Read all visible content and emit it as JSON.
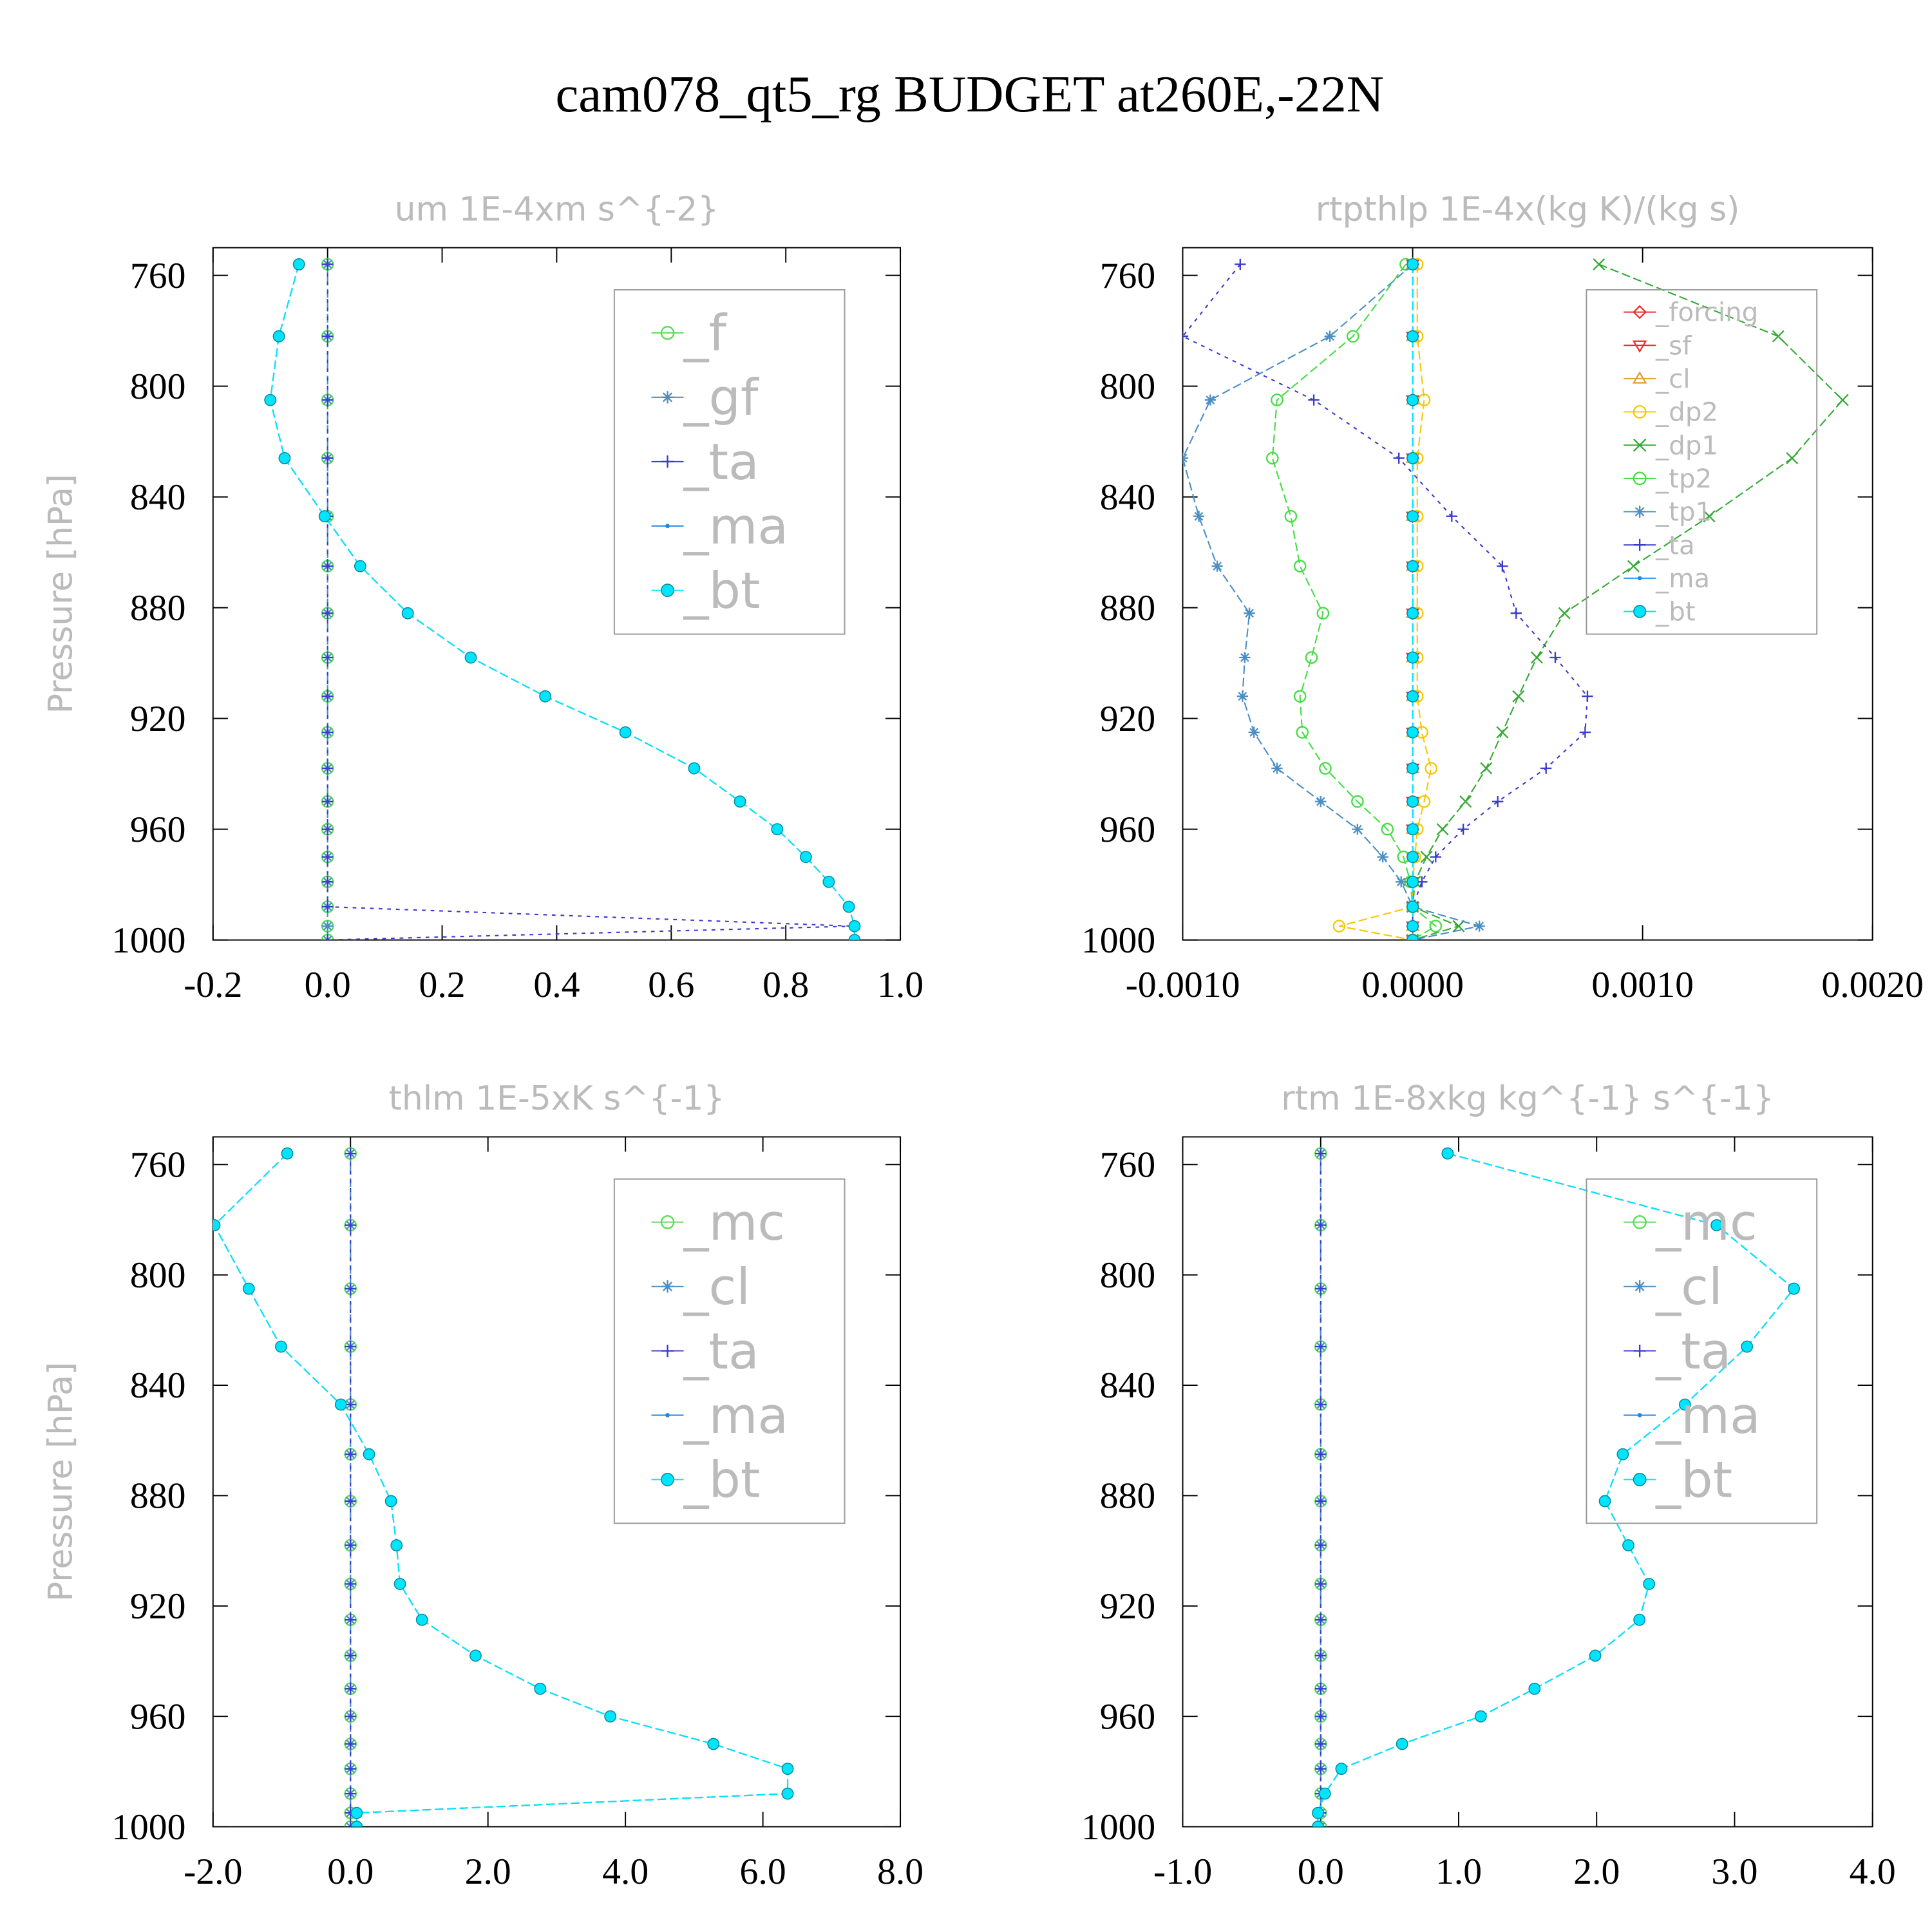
{
  "title": "cam078_qt5_rg  BUDGET at260E,-22N",
  "chart_data": [
    {
      "type": "line",
      "title": "um   1E-4xm s^{-2}",
      "ylabel": "Pressure [hPa]",
      "y": [
        756,
        782,
        805,
        826,
        847,
        865,
        882,
        898,
        912,
        925,
        938,
        950,
        960,
        970,
        979,
        988,
        995,
        1000
      ],
      "ylim": [
        750,
        1000
      ],
      "y_inverted": true,
      "yticks": [
        760,
        800,
        840,
        880,
        920,
        960,
        1000
      ],
      "xlim": [
        -0.2,
        1.0
      ],
      "xticks": [
        -0.2,
        {
          "value": 0,
          "label": "0.0"
        },
        0.2,
        0.4,
        0.6,
        0.8,
        {
          "value": 1,
          "label": "1.0"
        }
      ],
      "legend": "upper right",
      "series": [
        {
          "name": "_f",
          "color": "#55dd55",
          "marker": "circle",
          "values": [
            0,
            0,
            0,
            0,
            0,
            0,
            0,
            0,
            0,
            0,
            0,
            0,
            0,
            0,
            0,
            0,
            0,
            0
          ]
        },
        {
          "name": "_gf",
          "color": "#4a8fc4",
          "marker": "asterisk",
          "values": [
            0,
            0,
            0,
            0,
            0,
            0,
            0,
            0,
            0,
            0,
            0,
            0,
            0,
            0,
            0,
            0,
            0,
            0
          ]
        },
        {
          "name": "_ta",
          "color": "#3a3acc",
          "marker": "plus",
          "values": [
            0,
            0,
            0,
            0,
            0,
            0,
            0,
            0,
            0,
            0,
            0,
            0,
            0,
            0,
            0,
            0,
            0.92,
            0
          ]
        },
        {
          "name": "_ma",
          "color": "#1e88e5",
          "marker": "dot",
          "values": [
            -0.05,
            -0.085,
            -0.1,
            -0.075,
            -0.005,
            0.057,
            0.14,
            0.25,
            0.38,
            0.52,
            0.64,
            0.72,
            0.785,
            0.835,
            0.875,
            0.91,
            0.92,
            0.92
          ]
        },
        {
          "name": "_bt",
          "color": "#00e5ff",
          "marker": "filled",
          "values": [
            -0.05,
            -0.085,
            -0.1,
            -0.075,
            -0.005,
            0.057,
            0.14,
            0.25,
            0.38,
            0.52,
            0.64,
            0.72,
            0.785,
            0.835,
            0.875,
            0.91,
            0.92,
            0.92
          ]
        }
      ]
    },
    {
      "type": "line",
      "title": "rtpthlp   1E-4x(kg K)/(kg s)",
      "ylabel": "Pressure [hPa]",
      "y": [
        756,
        782,
        805,
        826,
        847,
        865,
        882,
        898,
        912,
        925,
        938,
        950,
        960,
        970,
        979,
        988,
        995,
        1000
      ],
      "ylim": [
        750,
        1000
      ],
      "y_inverted": true,
      "yticks": [
        760,
        800,
        840,
        880,
        920,
        960,
        1000
      ],
      "xlim": [
        -0.001,
        0.002
      ],
      "xticks": [
        {
          "value": -0.001,
          "label": "-0.0010"
        },
        {
          "value": 0,
          "label": "0.0000"
        },
        {
          "value": 0.001,
          "label": "0.0010"
        },
        {
          "value": 0.002,
          "label": "0.0020"
        }
      ],
      "legend": "upper right",
      "series": [
        {
          "name": "_forcing",
          "color": "#e83030",
          "marker": "diamond",
          "values": [
            0,
            0,
            0,
            0,
            0,
            0,
            0,
            0,
            0,
            0,
            0,
            0,
            0,
            0,
            0,
            0,
            0,
            0
          ]
        },
        {
          "name": "_sf",
          "color": "#e83030",
          "marker": "tridown",
          "values": [
            0,
            0,
            0,
            0,
            0,
            0,
            0,
            0,
            0,
            0,
            0,
            0,
            0,
            0,
            0,
            0,
            0,
            0
          ]
        },
        {
          "name": "_cl",
          "color": "#e0a030",
          "marker": "triup",
          "values": [
            0,
            0,
            0,
            0,
            0,
            0,
            0,
            0,
            0,
            0,
            0,
            0,
            0,
            0,
            0,
            0,
            0,
            0
          ]
        },
        {
          "name": "_dp2",
          "color": "#f5c800",
          "marker": "circle",
          "values": [
            2e-05,
            2e-05,
            5e-05,
            2e-05,
            2e-05,
            2e-05,
            2e-05,
            2e-05,
            2e-05,
            4e-05,
            8e-05,
            5e-05,
            2e-05,
            1e-05,
            0,
            0,
            -0.00032,
            0
          ]
        },
        {
          "name": "_dp1",
          "color": "#33aa33",
          "marker": "x",
          "values": [
            0.00081,
            0.00159,
            0.00187,
            0.00165,
            0.00129,
            0.00096,
            0.00066,
            0.00054,
            0.00046,
            0.00039,
            0.00032,
            0.00023,
            0.00013,
            6e-05,
            1e-05,
            0,
            0.0002,
            0
          ]
        },
        {
          "name": "_tp2",
          "color": "#44dd44",
          "marker": "circle",
          "values": [
            -3e-05,
            -0.00026,
            -0.00059,
            -0.00061,
            -0.00053,
            -0.00049,
            -0.00039,
            -0.00044,
            -0.00049,
            -0.00048,
            -0.00038,
            -0.00024,
            -0.00011,
            -4e-05,
            -1e-05,
            0,
            0.0001,
            0
          ]
        },
        {
          "name": "_tp1",
          "color": "#4a8fc4",
          "marker": "asterisk",
          "values": [
            0,
            -0.00036,
            -0.00088,
            -0.001,
            -0.00093,
            -0.00085,
            -0.00071,
            -0.00073,
            -0.00074,
            -0.00069,
            -0.00059,
            -0.0004,
            -0.00024,
            -0.00013,
            -5e-05,
            0,
            0.00029,
            0
          ]
        },
        {
          "name": "_ta",
          "color": "#3a3acc",
          "marker": "plus",
          "values": [
            -0.00075,
            -0.001,
            -0.00043,
            -6e-05,
            0.00017,
            0.00039,
            0.00045,
            0.00062,
            0.00076,
            0.00075,
            0.00058,
            0.00037,
            0.00022,
            0.0001,
            4e-05,
            0,
            0,
            0
          ]
        },
        {
          "name": "_ma",
          "color": "#1e88e5",
          "marker": "dot",
          "values": [
            0,
            0,
            0,
            0,
            0,
            0,
            0,
            0,
            0,
            0,
            0,
            0,
            0,
            0,
            0,
            0,
            0,
            0
          ]
        },
        {
          "name": "_bt",
          "color": "#00e5ff",
          "marker": "filled",
          "values": [
            0,
            0,
            0,
            0,
            0,
            0,
            0,
            0,
            0,
            0,
            0,
            0,
            0,
            0,
            0,
            0,
            0,
            0
          ]
        }
      ]
    },
    {
      "type": "line",
      "title": "thlm   1E-5xK s^{-1}",
      "ylabel": "Pressure [hPa]",
      "y": [
        756,
        782,
        805,
        826,
        847,
        865,
        882,
        898,
        912,
        925,
        938,
        950,
        960,
        970,
        979,
        988,
        995,
        1000
      ],
      "ylim": [
        750,
        1000
      ],
      "y_inverted": true,
      "yticks": [
        760,
        800,
        840,
        880,
        920,
        960,
        1000
      ],
      "xlim": [
        -2,
        8
      ],
      "xticks": [
        {
          "value": -2,
          "label": "-2.0"
        },
        {
          "value": 0,
          "label": "0.0"
        },
        {
          "value": 2,
          "label": "2.0"
        },
        {
          "value": 4,
          "label": "4.0"
        },
        {
          "value": 6,
          "label": "6.0"
        },
        {
          "value": 8,
          "label": "8.0"
        }
      ],
      "legend": "upper right",
      "series": [
        {
          "name": "_mc",
          "color": "#55dd55",
          "marker": "circle",
          "values": [
            0,
            0,
            0,
            0,
            0,
            0,
            0,
            0,
            0,
            0,
            0,
            0,
            0,
            0,
            0,
            0,
            0,
            0
          ]
        },
        {
          "name": "_cl",
          "color": "#4a8fc4",
          "marker": "asterisk",
          "values": [
            0,
            0,
            0,
            0,
            0,
            0,
            0,
            0,
            0,
            0,
            0,
            0,
            0,
            0,
            0,
            0,
            0,
            0
          ]
        },
        {
          "name": "_ta",
          "color": "#3a3acc",
          "marker": "plus",
          "values": [
            0,
            0,
            0,
            0,
            0,
            0,
            0,
            0,
            0,
            0,
            0,
            0,
            0,
            0,
            0,
            0,
            0,
            0
          ]
        },
        {
          "name": "_ma",
          "color": "#1e88e5",
          "marker": "dot",
          "values": [
            -0.92,
            -1.98,
            -1.48,
            -1.01,
            -0.14,
            0.27,
            0.59,
            0.67,
            0.72,
            1.04,
            1.82,
            2.76,
            3.78,
            5.28,
            6.36,
            6.36,
            0.09,
            0.09
          ]
        },
        {
          "name": "_bt",
          "color": "#00e5ff",
          "marker": "filled",
          "values": [
            -0.92,
            -1.98,
            -1.48,
            -1.01,
            -0.14,
            0.27,
            0.59,
            0.67,
            0.72,
            1.04,
            1.82,
            2.76,
            3.78,
            5.28,
            6.36,
            6.36,
            0.09,
            0.09
          ]
        }
      ]
    },
    {
      "type": "line",
      "title": "rtm   1E-8xkg kg^{-1} s^{-1}",
      "ylabel": "Pressure [hPa]",
      "y": [
        756,
        782,
        805,
        826,
        847,
        865,
        882,
        898,
        912,
        925,
        938,
        950,
        960,
        970,
        979,
        988,
        995,
        1000
      ],
      "ylim": [
        750,
        1000
      ],
      "y_inverted": true,
      "yticks": [
        760,
        800,
        840,
        880,
        920,
        960,
        1000
      ],
      "xlim": [
        -1,
        4
      ],
      "xticks": [
        {
          "value": -1,
          "label": "-1.0"
        },
        {
          "value": 0,
          "label": "0.0"
        },
        {
          "value": 1,
          "label": "1.0"
        },
        {
          "value": 2,
          "label": "2.0"
        },
        {
          "value": 3,
          "label": "3.0"
        },
        {
          "value": 4,
          "label": "4.0"
        }
      ],
      "legend": "upper right",
      "series": [
        {
          "name": "_mc",
          "color": "#55dd55",
          "marker": "circle",
          "values": [
            0,
            0,
            0,
            0,
            0,
            0,
            0,
            0,
            0,
            0,
            0,
            0,
            0,
            0,
            0,
            0,
            0,
            0
          ]
        },
        {
          "name": "_cl",
          "color": "#4a8fc4",
          "marker": "asterisk",
          "values": [
            0,
            0,
            0,
            0,
            0,
            0,
            0,
            0,
            0,
            0,
            0,
            0,
            0,
            0,
            0,
            0,
            0,
            0
          ]
        },
        {
          "name": "_ta",
          "color": "#3a3acc",
          "marker": "plus",
          "values": [
            0,
            0,
            0,
            0,
            0,
            0,
            0,
            0,
            0,
            0,
            0,
            0,
            0,
            0,
            0,
            0,
            0,
            0
          ]
        },
        {
          "name": "_ma",
          "color": "#1e88e5",
          "marker": "dot",
          "values": [
            0.92,
            2.87,
            3.43,
            3.09,
            2.64,
            2.19,
            2.06,
            2.23,
            2.38,
            2.31,
            1.99,
            1.55,
            1.16,
            0.59,
            0.15,
            0.03,
            -0.02,
            -0.02
          ]
        },
        {
          "name": "_bt",
          "color": "#00e5ff",
          "marker": "filled",
          "values": [
            0.92,
            2.87,
            3.43,
            3.09,
            2.64,
            2.19,
            2.06,
            2.23,
            2.38,
            2.31,
            1.99,
            1.55,
            1.16,
            0.59,
            0.15,
            0.03,
            -0.02,
            -0.02
          ]
        }
      ]
    }
  ]
}
